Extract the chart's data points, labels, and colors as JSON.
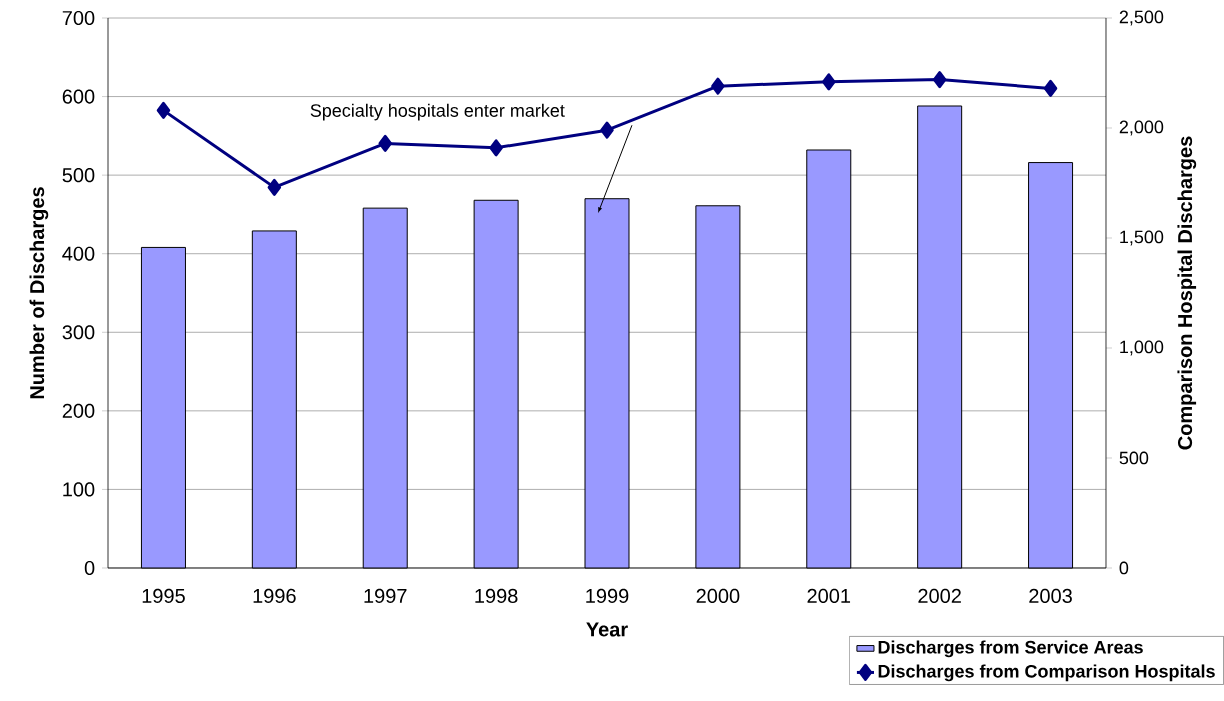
{
  "chart_data": {
    "type": "bar",
    "xlabel": "Year",
    "ylabel": "Number of Discharges",
    "y2label": "Comparison Hospital Discharges",
    "categories": [
      "1995",
      "1996",
      "1997",
      "1998",
      "1999",
      "2000",
      "2001",
      "2002",
      "2003"
    ],
    "series": [
      {
        "name": "Discharges from Service Areas",
        "color": "#9999ff",
        "values": [
          408,
          429,
          458,
          468,
          470,
          461,
          532,
          588,
          516
        ]
      },
      {
        "name": "Discharges from Comparison Hospitals",
        "type": "line",
        "axis": "y2",
        "color": "#000080",
        "marker": "diamond",
        "line_style": "solid",
        "values": [
          2080,
          1730,
          1930,
          1910,
          1990,
          2190,
          2210,
          2220,
          2180
        ]
      }
    ],
    "ylim": [
      0,
      700
    ],
    "yticks": [
      0,
      100,
      200,
      300,
      400,
      500,
      600,
      700
    ],
    "y2lim": [
      0,
      2500
    ],
    "y2ticks": [
      0,
      500,
      {
        "value": 1000,
        "label": "1,000"
      },
      {
        "value": 1500,
        "label": "1,500"
      },
      {
        "value": 2000,
        "label": "2,000"
      },
      {
        "value": 2500,
        "label": "2,500"
      }
    ],
    "grid": "y",
    "legend": "bottom right",
    "annotations": [
      "Specialty hospitals enter market"
    ]
  }
}
